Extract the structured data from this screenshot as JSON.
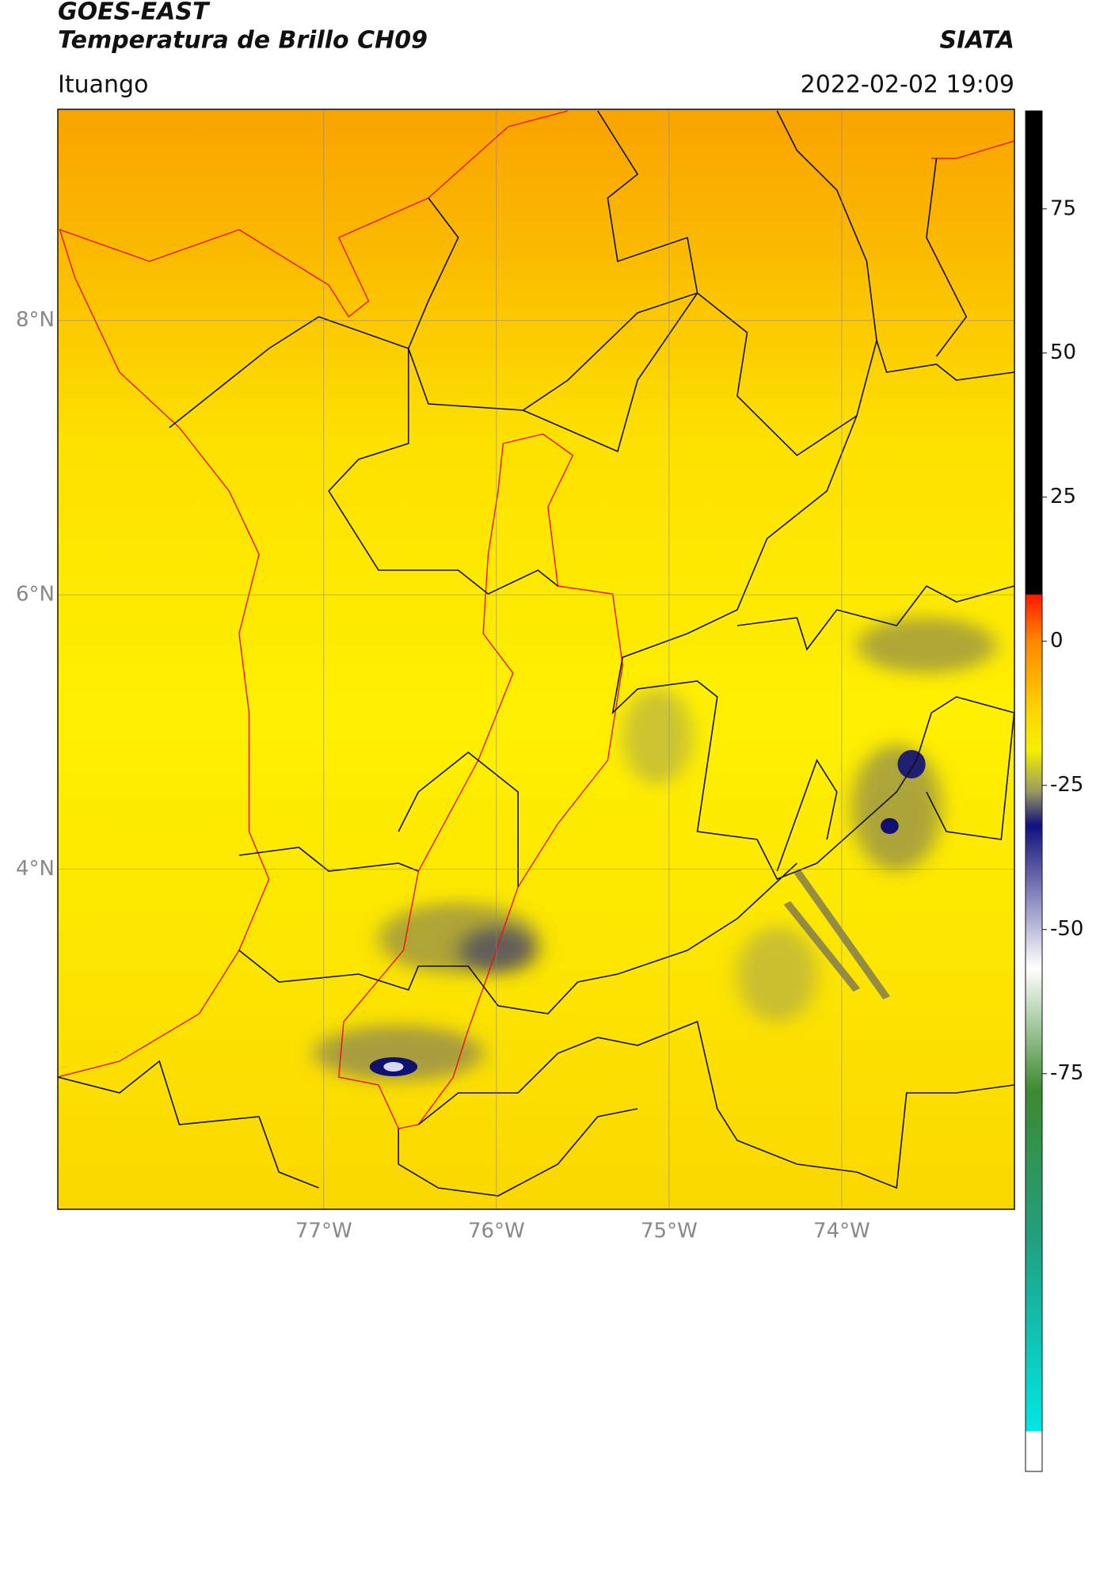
{
  "header": {
    "title": "GOES-EAST",
    "subtitle": "Temperatura de Brillo CH09",
    "source": "SIATA",
    "location": "Ituango",
    "datetime": "2022-02-02 19:09"
  },
  "chart_data": {
    "type": "map",
    "xlim": [
      -78.54,
      -73.0
    ],
    "ylim": [
      1.52,
      9.54
    ],
    "xticks": [
      {
        "value": -77,
        "label": "77°W"
      },
      {
        "value": -76,
        "label": "76°W"
      },
      {
        "value": -75,
        "label": "75°W"
      },
      {
        "value": -74,
        "label": "74°W"
      }
    ],
    "yticks": [
      {
        "value": 4,
        "label": "4°N"
      },
      {
        "value": 6,
        "label": "6°N"
      },
      {
        "value": 8,
        "label": "8°N"
      }
    ],
    "grid": true,
    "colorbar": {
      "lim": [
        -144,
        92
      ],
      "ticks": [
        -75,
        -50,
        -25,
        0,
        25,
        50,
        75
      ]
    }
  }
}
